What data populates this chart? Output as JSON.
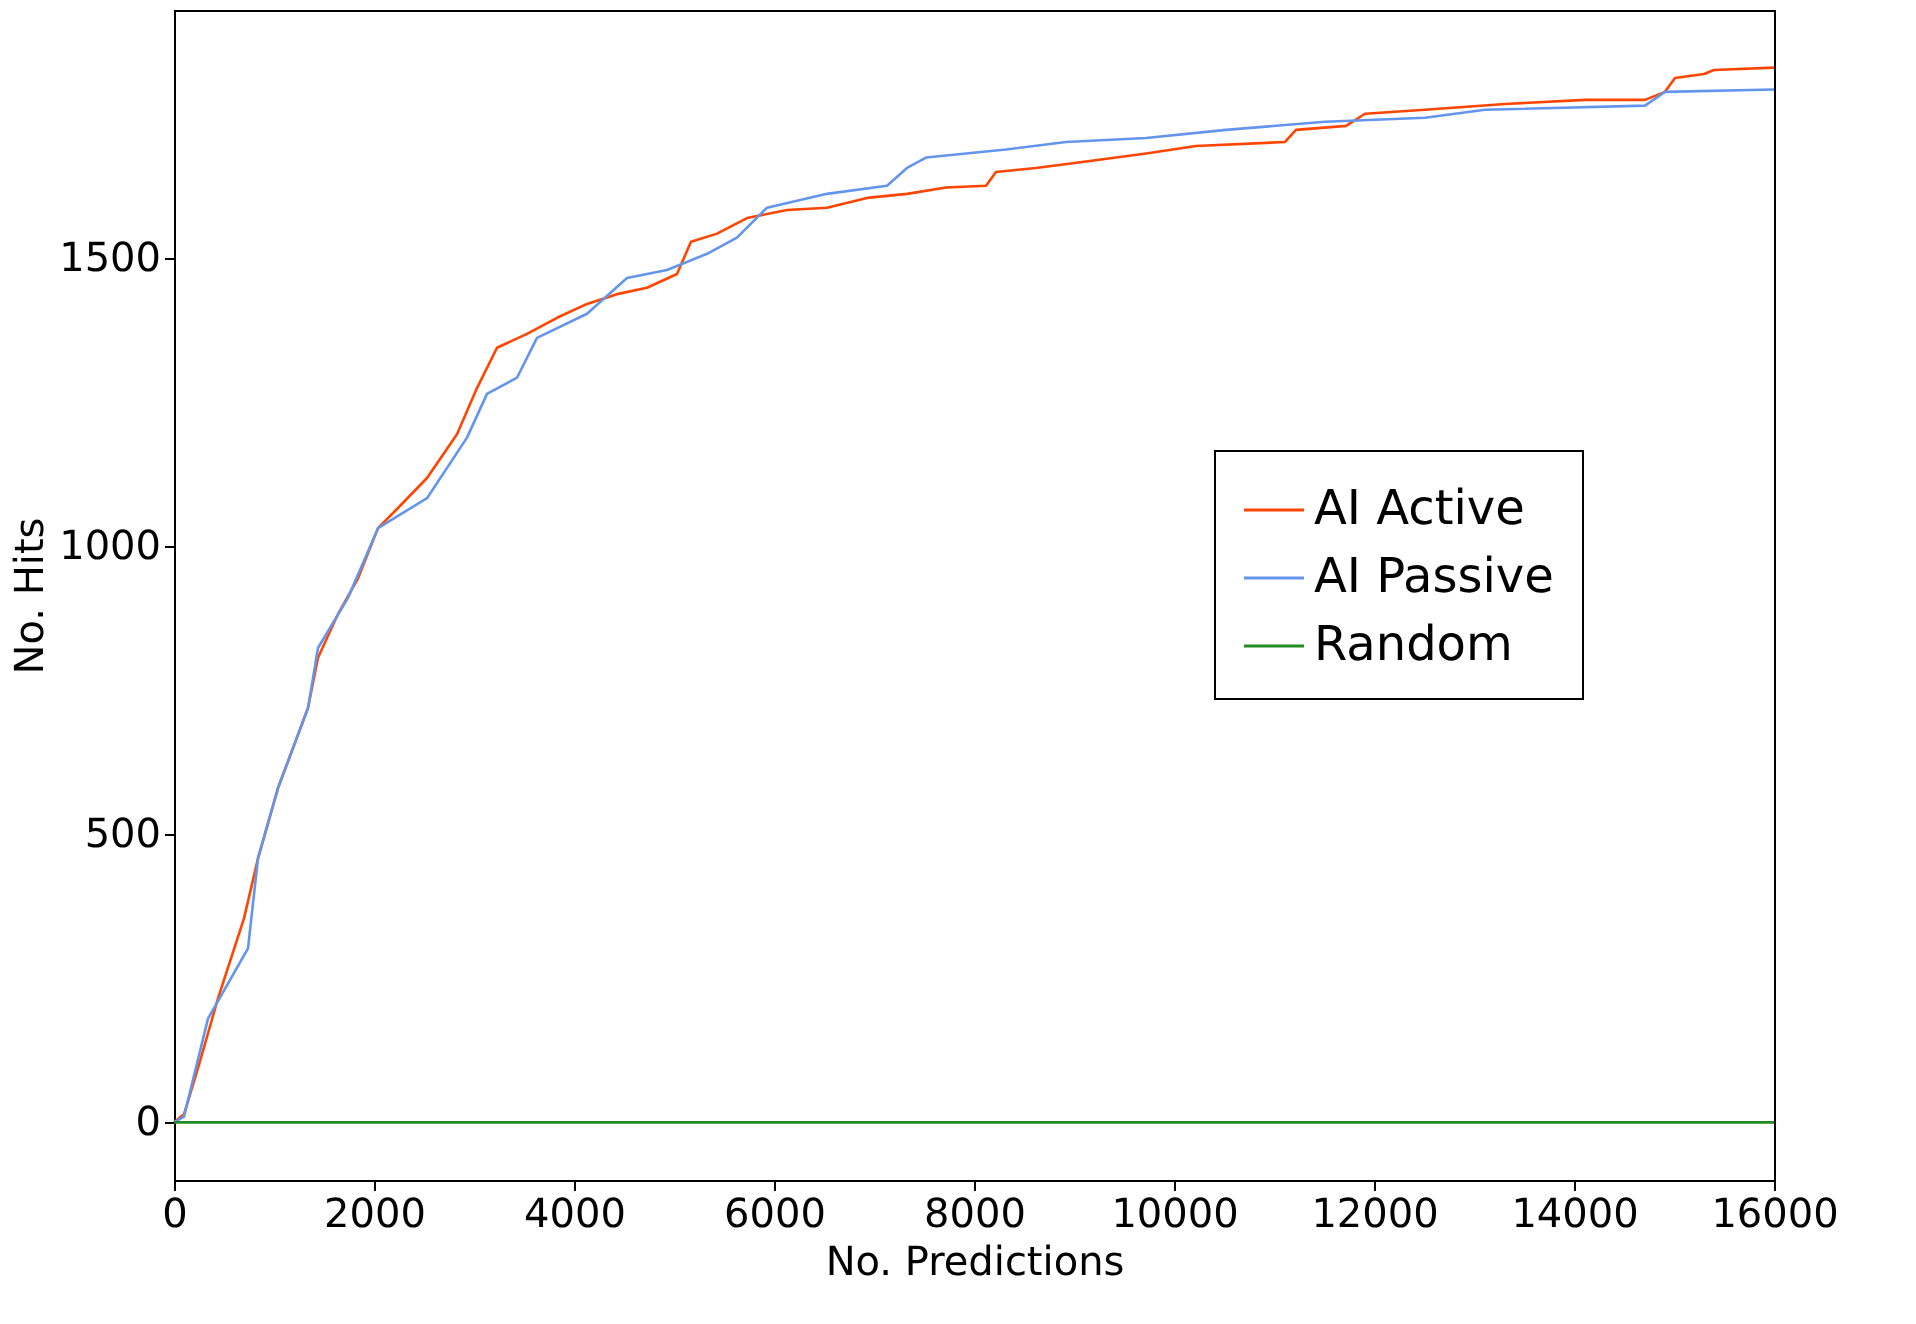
{
  "chart_data": {
    "type": "line",
    "xlabel": "No. Predictions",
    "ylabel": "No. Hits",
    "xlim": [
      0,
      16000
    ],
    "ylim": [
      -100,
      1930
    ],
    "xticks": [
      0,
      2000,
      4000,
      6000,
      8000,
      10000,
      12000,
      14000,
      16000
    ],
    "yticks": [
      0,
      500,
      1000,
      1500
    ],
    "grid": false,
    "legend": "right",
    "marker": "none",
    "line_style": "solid",
    "series": [
      {
        "name": "AI Active",
        "color": "#ff4500",
        "x": [
          0,
          100,
          240,
          440,
          700,
          840,
          1040,
          1340,
          1440,
          1640,
          1840,
          2040,
          2240,
          2530,
          2830,
          3030,
          3230,
          3530,
          3830,
          4130,
          4430,
          4730,
          5030,
          5170,
          5430,
          5730,
          6130,
          6530,
          6930,
          7330,
          7720,
          8120,
          8220,
          8620,
          9120,
          9720,
          10220,
          11110,
          11220,
          11720,
          11910,
          12510,
          13310,
          14110,
          14710,
          14910,
          15010,
          15300,
          15400,
          16000
        ],
        "values": [
          0,
          14,
          94,
          215,
          354,
          458,
          580,
          719,
          806,
          882,
          944,
          1031,
          1066,
          1118,
          1194,
          1274,
          1344,
          1368,
          1396,
          1420,
          1437,
          1448,
          1472,
          1528,
          1542,
          1569,
          1583,
          1587,
          1604,
          1611,
          1622,
          1625,
          1649,
          1656,
          1667,
          1681,
          1694,
          1701,
          1722,
          1729,
          1750,
          1757,
          1767,
          1774,
          1774,
          1788,
          1812,
          1819,
          1826,
          1830
        ]
      },
      {
        "name": "AI Passive",
        "color": "#6495ed",
        "x": [
          0,
          100,
          340,
          740,
          840,
          1040,
          1340,
          1440,
          1740,
          2040,
          2530,
          2930,
          3130,
          3430,
          3630,
          4130,
          4530,
          4930,
          5330,
          5630,
          5930,
          6530,
          7130,
          7330,
          7520,
          8320,
          8920,
          9720,
          10520,
          11510,
          12510,
          13110,
          14710,
          14910,
          16000
        ],
        "values": [
          0,
          10,
          180,
          302,
          458,
          580,
          719,
          823,
          910,
          1031,
          1083,
          1188,
          1264,
          1292,
          1361,
          1403,
          1465,
          1479,
          1507,
          1535,
          1587,
          1611,
          1625,
          1656,
          1674,
          1688,
          1701,
          1708,
          1722,
          1736,
          1743,
          1757,
          1764,
          1788,
          1792
        ]
      },
      {
        "name": "Random",
        "color": "#228b22",
        "x": [
          0,
          16000
        ],
        "values": [
          0,
          0
        ]
      }
    ]
  }
}
